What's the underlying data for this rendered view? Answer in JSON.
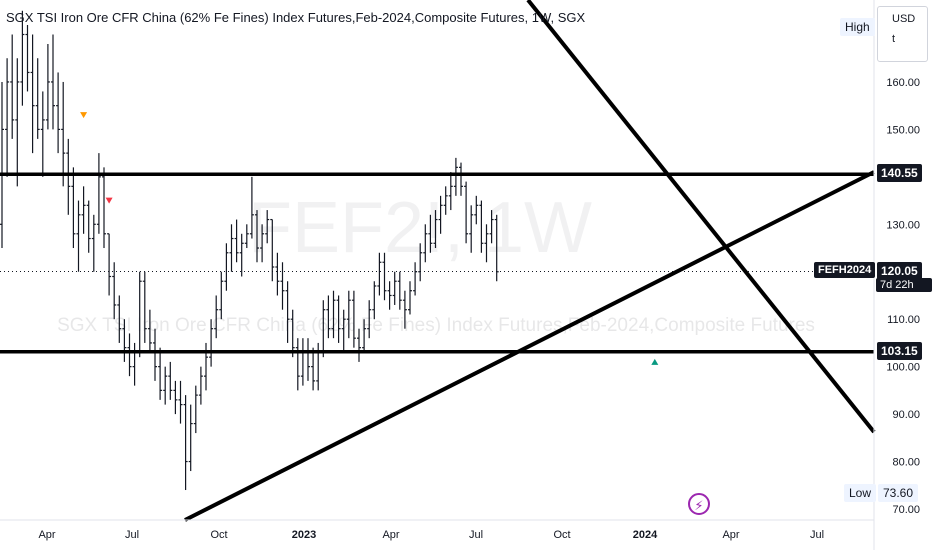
{
  "header": {
    "title": "SGX TSI Iron Ore CFR China (62% Fe Fines) Index Futures,Feb-2024,Composite Futures, 1W, SGX"
  },
  "currency_button": {
    "line1": "USD",
    "line2": "t"
  },
  "watermark": {
    "symbol": "FEF2!, 1W",
    "description": "SGX TSI Iron Ore CFR China (62% Fe Fines) Index Futures,Feb-2024,Composite Futures"
  },
  "labels": {
    "high": "High",
    "low": "Low",
    "low_value": "73.60",
    "ticker": "FEFH2024",
    "last_price": "120.05",
    "countdown": "7d 22h",
    "level_upper": "140.55",
    "level_lower": "103.15"
  },
  "colors": {
    "bar": "#131722",
    "marker_orange": "#ff9800",
    "marker_red": "#f23645",
    "marker_green": "#089981",
    "accent_purple": "#9c27b0"
  },
  "chart_data": {
    "type": "ohlc",
    "interval": "1W",
    "y_ticks": [
      70,
      80,
      90,
      100,
      110,
      120,
      130,
      140,
      150,
      160
    ],
    "y_tick_labels": [
      "70.00",
      "80.00",
      "90.00",
      "100.00",
      "110.00",
      "120.00",
      "130.00",
      "140.00",
      "150.00",
      "160.00"
    ],
    "ylim": [
      68,
      178
    ],
    "x_tick_labels": [
      "Apr",
      "Jul",
      "Oct",
      "2023",
      "Apr",
      "Jul",
      "Oct",
      "2024",
      "Apr",
      "Jul"
    ],
    "bars": [
      {
        "o": 130,
        "h": 160,
        "l": 125,
        "c": 150
      },
      {
        "o": 150,
        "h": 165,
        "l": 140,
        "c": 160
      },
      {
        "o": 160,
        "h": 170,
        "l": 148,
        "c": 152
      },
      {
        "o": 152,
        "h": 165,
        "l": 138,
        "c": 160
      },
      {
        "o": 160,
        "h": 175,
        "l": 155,
        "c": 170
      },
      {
        "o": 170,
        "h": 172,
        "l": 158,
        "c": 162
      },
      {
        "o": 162,
        "h": 170,
        "l": 145,
        "c": 155
      },
      {
        "o": 155,
        "h": 165,
        "l": 148,
        "c": 150
      },
      {
        "o": 150,
        "h": 158,
        "l": 140,
        "c": 152
      },
      {
        "o": 152,
        "h": 168,
        "l": 150,
        "c": 160
      },
      {
        "o": 160,
        "h": 170,
        "l": 150,
        "c": 155
      },
      {
        "o": 155,
        "h": 162,
        "l": 145,
        "c": 150
      },
      {
        "o": 150,
        "h": 160,
        "l": 138,
        "c": 145
      },
      {
        "o": 145,
        "h": 148,
        "l": 132,
        "c": 138
      },
      {
        "o": 138,
        "h": 142,
        "l": 125,
        "c": 128
      },
      {
        "o": 128,
        "h": 135,
        "l": 120,
        "c": 132
      },
      {
        "o": 132,
        "h": 138,
        "l": 128,
        "c": 134
      },
      {
        "o": 134,
        "h": 135,
        "l": 124,
        "c": 127
      },
      {
        "o": 127,
        "h": 132,
        "l": 120,
        "c": 130
      },
      {
        "o": 130,
        "h": 145,
        "l": 128,
        "c": 140
      },
      {
        "o": 140,
        "h": 142,
        "l": 125,
        "c": 128
      },
      {
        "o": 128,
        "h": 128,
        "l": 115,
        "c": 119
      },
      {
        "o": 119,
        "h": 122,
        "l": 110,
        "c": 113
      },
      {
        "o": 113,
        "h": 115,
        "l": 105,
        "c": 108
      },
      {
        "o": 108,
        "h": 110,
        "l": 101,
        "c": 104
      },
      {
        "o": 104,
        "h": 107,
        "l": 98,
        "c": 100
      },
      {
        "o": 100,
        "h": 105,
        "l": 96,
        "c": 103
      },
      {
        "o": 103,
        "h": 120,
        "l": 102,
        "c": 118
      },
      {
        "o": 118,
        "h": 120,
        "l": 105,
        "c": 108
      },
      {
        "o": 108,
        "h": 112,
        "l": 103,
        "c": 105
      },
      {
        "o": 105,
        "h": 108,
        "l": 97,
        "c": 100
      },
      {
        "o": 100,
        "h": 104,
        "l": 93,
        "c": 95
      },
      {
        "o": 95,
        "h": 100,
        "l": 92,
        "c": 98
      },
      {
        "o": 98,
        "h": 101,
        "l": 93,
        "c": 95
      },
      {
        "o": 95,
        "h": 97,
        "l": 90,
        "c": 93
      },
      {
        "o": 93,
        "h": 97,
        "l": 88,
        "c": 92
      },
      {
        "o": 92,
        "h": 94,
        "l": 74,
        "c": 80
      },
      {
        "o": 80,
        "h": 92,
        "l": 78,
        "c": 88
      },
      {
        "o": 88,
        "h": 96,
        "l": 86,
        "c": 94
      },
      {
        "o": 94,
        "h": 100,
        "l": 92,
        "c": 98
      },
      {
        "o": 98,
        "h": 105,
        "l": 95,
        "c": 102
      },
      {
        "o": 102,
        "h": 110,
        "l": 100,
        "c": 108
      },
      {
        "o": 108,
        "h": 115,
        "l": 106,
        "c": 112
      },
      {
        "o": 112,
        "h": 120,
        "l": 110,
        "c": 118
      },
      {
        "o": 118,
        "h": 126,
        "l": 116,
        "c": 124
      },
      {
        "o": 124,
        "h": 130,
        "l": 120,
        "c": 127
      },
      {
        "o": 127,
        "h": 131,
        "l": 122,
        "c": 124
      },
      {
        "o": 124,
        "h": 128,
        "l": 119,
        "c": 126
      },
      {
        "o": 126,
        "h": 130,
        "l": 125,
        "c": 128
      },
      {
        "o": 128,
        "h": 140,
        "l": 127,
        "c": 132
      },
      {
        "o": 132,
        "h": 133,
        "l": 122,
        "c": 125
      },
      {
        "o": 125,
        "h": 130,
        "l": 122,
        "c": 128
      },
      {
        "o": 128,
        "h": 133,
        "l": 126,
        "c": 131
      },
      {
        "o": 131,
        "h": 131,
        "l": 118,
        "c": 121
      },
      {
        "o": 121,
        "h": 124,
        "l": 115,
        "c": 118
      },
      {
        "o": 118,
        "h": 122,
        "l": 112,
        "c": 116
      },
      {
        "o": 116,
        "h": 118,
        "l": 105,
        "c": 110
      },
      {
        "o": 110,
        "h": 112,
        "l": 102,
        "c": 104
      },
      {
        "o": 104,
        "h": 106,
        "l": 95,
        "c": 98
      },
      {
        "o": 98,
        "h": 106,
        "l": 96,
        "c": 103
      },
      {
        "o": 103,
        "h": 106,
        "l": 97,
        "c": 100
      },
      {
        "o": 100,
        "h": 104,
        "l": 95,
        "c": 97
      },
      {
        "o": 97,
        "h": 105,
        "l": 95,
        "c": 103
      },
      {
        "o": 103,
        "h": 114,
        "l": 102,
        "c": 112
      },
      {
        "o": 112,
        "h": 115,
        "l": 106,
        "c": 108
      },
      {
        "o": 108,
        "h": 116,
        "l": 106,
        "c": 114
      },
      {
        "o": 114,
        "h": 115,
        "l": 105,
        "c": 108
      },
      {
        "o": 108,
        "h": 112,
        "l": 103,
        "c": 110
      },
      {
        "o": 110,
        "h": 116,
        "l": 106,
        "c": 114
      },
      {
        "o": 114,
        "h": 116,
        "l": 104,
        "c": 106
      },
      {
        "o": 106,
        "h": 108,
        "l": 101,
        "c": 104
      },
      {
        "o": 104,
        "h": 110,
        "l": 103,
        "c": 108
      },
      {
        "o": 108,
        "h": 114,
        "l": 106,
        "c": 112
      },
      {
        "o": 112,
        "h": 118,
        "l": 110,
        "c": 117
      },
      {
        "o": 117,
        "h": 124,
        "l": 115,
        "c": 122
      },
      {
        "o": 122,
        "h": 124,
        "l": 114,
        "c": 116
      },
      {
        "o": 116,
        "h": 118,
        "l": 112,
        "c": 115
      },
      {
        "o": 115,
        "h": 120,
        "l": 113,
        "c": 118
      },
      {
        "o": 118,
        "h": 120,
        "l": 112,
        "c": 114
      },
      {
        "o": 114,
        "h": 116,
        "l": 108,
        "c": 112
      },
      {
        "o": 112,
        "h": 118,
        "l": 111,
        "c": 116
      },
      {
        "o": 116,
        "h": 122,
        "l": 115,
        "c": 120
      },
      {
        "o": 120,
        "h": 126,
        "l": 118,
        "c": 124
      },
      {
        "o": 124,
        "h": 130,
        "l": 122,
        "c": 128
      },
      {
        "o": 128,
        "h": 132,
        "l": 124,
        "c": 126
      },
      {
        "o": 126,
        "h": 133,
        "l": 125,
        "c": 131
      },
      {
        "o": 131,
        "h": 136,
        "l": 128,
        "c": 134
      },
      {
        "o": 134,
        "h": 138,
        "l": 132,
        "c": 136
      },
      {
        "o": 136,
        "h": 141,
        "l": 133,
        "c": 138
      },
      {
        "o": 138,
        "h": 144,
        "l": 136,
        "c": 142
      },
      {
        "o": 142,
        "h": 143,
        "l": 136,
        "c": 138
      },
      {
        "o": 138,
        "h": 139,
        "l": 126,
        "c": 128
      },
      {
        "o": 128,
        "h": 134,
        "l": 124,
        "c": 132
      },
      {
        "o": 132,
        "h": 136,
        "l": 130,
        "c": 134
      },
      {
        "o": 134,
        "h": 135,
        "l": 124,
        "c": 126
      },
      {
        "o": 126,
        "h": 130,
        "l": 122,
        "c": 128
      },
      {
        "o": 128,
        "h": 133,
        "l": 126,
        "c": 131
      },
      {
        "o": 131,
        "h": 132,
        "l": 118,
        "c": 120
      }
    ],
    "levels": [
      140.55,
      103.15,
      120.05
    ],
    "trendlines": [
      {
        "x1_bar": 46,
        "y1": 70,
        "x2_bar": 999,
        "y2": 0
      },
      {
        "name": "support"
      },
      {
        "name": "resistance"
      }
    ],
    "markers": [
      {
        "bar": 16,
        "type": "down",
        "color": "#ff9800",
        "y": 153
      },
      {
        "bar": 21,
        "type": "down",
        "color": "#f23645",
        "y": 135
      },
      {
        "bar": 128,
        "type": "up",
        "color": "#089981",
        "y": 101
      }
    ]
  }
}
